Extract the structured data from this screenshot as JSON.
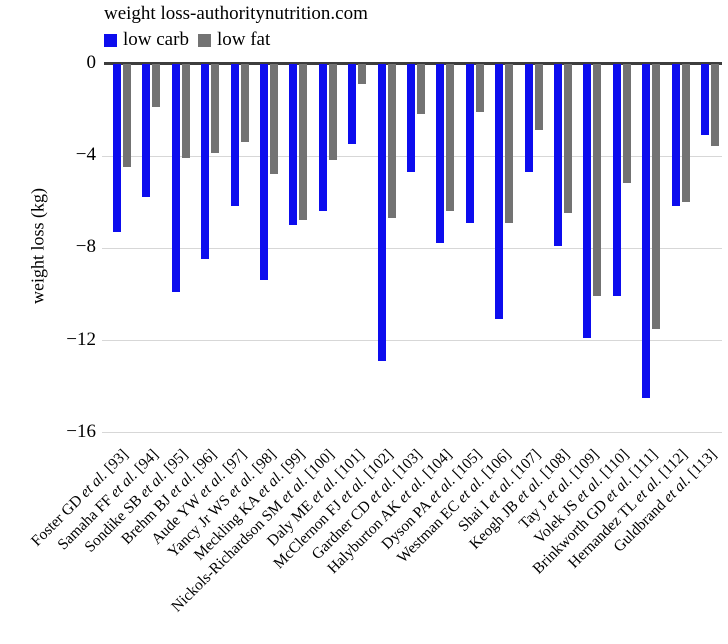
{
  "chart_data": {
    "type": "bar",
    "title": "weight loss-authoritynutrition.com",
    "xlabel": "",
    "ylabel": "weight loss (kg)",
    "ylim": [
      -16,
      0
    ],
    "yticks": [
      0,
      -4,
      -8,
      -12,
      -16
    ],
    "ytick_labels": [
      "0",
      "−4",
      "−8",
      "−12",
      "−16"
    ],
    "grid": "horizontal",
    "legend_position": "top-left",
    "categories": [
      "Foster GD et al. [93]",
      "Samaha FF et al. [94]",
      "Sondike SB et al. [95]",
      "Brehm BJ et al. [96]",
      "Aude YW et al. [97]",
      "Yancy Jr WS et al. [98]",
      "Meckling KA et al. [99]",
      "Nickols-Richardson SM et al. [100]",
      "Daly ME et al. [101]",
      "McClernon FJ et al. [102]",
      "Gardner CD et al. [103]",
      "Halyburton AK et al. [104]",
      "Dyson PA et al. [105]",
      "Westman EC et al. [106]",
      "Shai I et al. [107]",
      "Keogh JB et al. [108]",
      "Tay J et al. [109]",
      "Volek JS et al. [110]",
      "Brinkworth GD et al. [111]",
      "Hernandez TL et al. [112]",
      "Guldbrand et al. [113]"
    ],
    "series": [
      {
        "name": "low carb",
        "color": "#0d0dee",
        "values": [
          -7.3,
          -5.8,
          -9.9,
          -8.5,
          -6.2,
          -9.4,
          -7.0,
          -6.4,
          -3.5,
          -12.9,
          -4.7,
          -7.8,
          -6.9,
          -11.1,
          -4.7,
          -7.9,
          -11.9,
          -10.1,
          -14.5,
          -6.2,
          -3.1
        ]
      },
      {
        "name": "low fat",
        "color": "#737373",
        "values": [
          -4.5,
          -1.9,
          -4.1,
          -3.9,
          -3.4,
          -4.8,
          -6.8,
          -4.2,
          -0.9,
          -6.7,
          -2.2,
          -6.4,
          -2.1,
          -6.9,
          -2.9,
          -6.5,
          -10.1,
          -5.2,
          -11.5,
          -6.0,
          -3.6
        ]
      }
    ],
    "colors": {
      "axis_line": "#3d3d3d",
      "gridline": "#d7d7d7",
      "text": "#000000",
      "background": "#ffffff"
    }
  }
}
